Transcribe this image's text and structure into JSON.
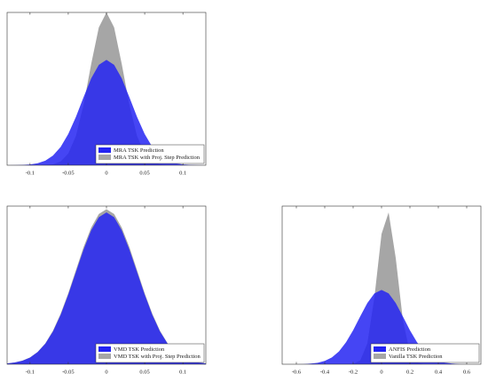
{
  "chart_data": [
    {
      "type": "area",
      "x": [
        -0.13,
        -0.12,
        -0.11,
        -0.1,
        -0.09,
        -0.08,
        -0.07,
        -0.06,
        -0.05,
        -0.04,
        -0.03,
        -0.02,
        -0.01,
        0,
        0.01,
        0.02,
        0.03,
        0.04,
        0.05,
        0.06,
        0.07,
        0.08,
        0.09,
        0.1,
        0.11,
        0.12,
        0.13
      ],
      "series": [
        {
          "name": "MRA TSK with Proj. Step Prediction",
          "color": "#a6a6a6",
          "values": [
            0,
            0,
            0,
            0,
            0,
            0.001,
            0.006,
            0.024,
            0.076,
            0.191,
            0.395,
            0.662,
            0.902,
            1,
            0.902,
            0.662,
            0.395,
            0.191,
            0.076,
            0.024,
            0.006,
            0.001,
            0,
            0,
            0,
            0,
            0
          ]
        },
        {
          "name": "MRA TSK Prediction",
          "color": "#2424f2",
          "values": [
            0,
            0.001,
            0.002,
            0.005,
            0.013,
            0.03,
            0.063,
            0.119,
            0.204,
            0.316,
            0.445,
            0.568,
            0.657,
            0.69,
            0.657,
            0.568,
            0.445,
            0.316,
            0.204,
            0.119,
            0.063,
            0.03,
            0.013,
            0.005,
            0.002,
            0.001,
            0
          ]
        }
      ],
      "xlim": [
        -0.13,
        0.13
      ],
      "ylim": [
        0,
        1
      ],
      "xticks": [
        -0.1,
        -0.05,
        0,
        0.05,
        0.1
      ],
      "legend": "lower right"
    },
    {
      "type": "area",
      "x": [
        -0.13,
        -0.12,
        -0.11,
        -0.1,
        -0.09,
        -0.08,
        -0.07,
        -0.06,
        -0.05,
        -0.04,
        -0.03,
        -0.02,
        -0.01,
        0,
        0.01,
        0.02,
        0.03,
        0.04,
        0.05,
        0.06,
        0.07,
        0.08,
        0.09,
        0.1,
        0.11,
        0.12,
        0.13
      ],
      "series": [
        {
          "name": "VMD TSK with Proj. Step Prediction",
          "color": "#a6a6a6",
          "values": [
            0.005,
            0.011,
            0.023,
            0.043,
            0.078,
            0.132,
            0.212,
            0.319,
            0.449,
            0.595,
            0.74,
            0.864,
            0.95,
            0.98,
            0.95,
            0.864,
            0.74,
            0.595,
            0.449,
            0.319,
            0.212,
            0.132,
            0.078,
            0.043,
            0.023,
            0.011,
            0.005
          ]
        },
        {
          "name": "VMD TSK Prediction",
          "color": "#2424f2",
          "values": [
            0.005,
            0.011,
            0.022,
            0.042,
            0.077,
            0.13,
            0.207,
            0.312,
            0.44,
            0.583,
            0.725,
            0.847,
            0.93,
            0.96,
            0.93,
            0.847,
            0.725,
            0.583,
            0.44,
            0.312,
            0.207,
            0.13,
            0.077,
            0.042,
            0.022,
            0.011,
            0.005
          ]
        }
      ],
      "xlim": [
        -0.13,
        0.13
      ],
      "ylim": [
        0,
        1
      ],
      "xticks": [
        -0.1,
        -0.05,
        0,
        0.05,
        0.1
      ],
      "legend": "lower right"
    },
    {
      "type": "area",
      "x": [
        -0.7,
        -0.65,
        -0.6,
        -0.55,
        -0.5,
        -0.45,
        -0.4,
        -0.35,
        -0.3,
        -0.25,
        -0.2,
        -0.15,
        -0.1,
        -0.05,
        0,
        0.05,
        0.1,
        0.15,
        0.2,
        0.25,
        0.3,
        0.35,
        0.4,
        0.45,
        0.5,
        0.55,
        0.6,
        0.65,
        0.7
      ],
      "series": [
        {
          "name": "Vanilla TSK Prediction",
          "color": "#a6a6a6",
          "values": [
            0,
            0,
            0,
            0,
            0,
            0,
            0,
            0,
            0,
            0,
            0.003,
            0.024,
            0.131,
            0.424,
            0.824,
            0.96,
            0.672,
            0.282,
            0.071,
            0.011,
            0.001,
            0,
            0,
            0,
            0,
            0,
            0,
            0,
            0
          ]
        },
        {
          "name": "ANFIS Prediction",
          "color": "#2424f2",
          "values": [
            0,
            0,
            0,
            0.001,
            0.004,
            0.009,
            0.021,
            0.043,
            0.081,
            0.139,
            0.215,
            0.303,
            0.387,
            0.448,
            0.47,
            0.448,
            0.387,
            0.303,
            0.215,
            0.139,
            0.081,
            0.043,
            0.021,
            0.009,
            0.004,
            0.001,
            0,
            0,
            0
          ]
        }
      ],
      "xlim": [
        -0.7,
        0.7
      ],
      "ylim": [
        0,
        1
      ],
      "xticks": [
        -0.6,
        -0.4,
        -0.2,
        0,
        0.2,
        0.4,
        0.6
      ],
      "legend": "lower right"
    }
  ]
}
